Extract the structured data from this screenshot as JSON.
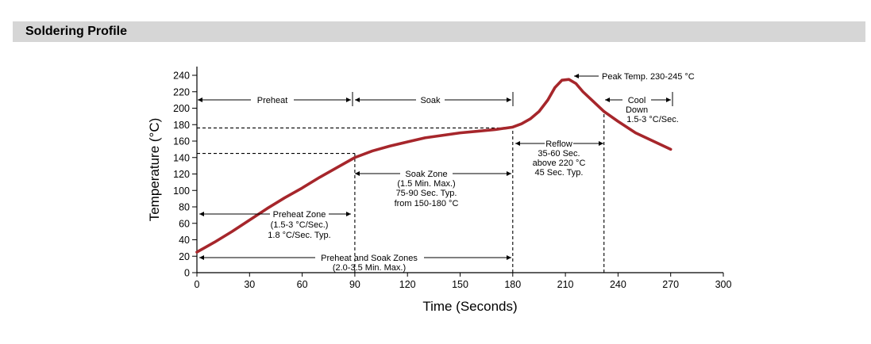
{
  "section": {
    "title": "Soldering Profile"
  },
  "chart_data": {
    "type": "line",
    "title": "",
    "xlabel": "Time (Seconds)",
    "ylabel": "Temperature (°C)",
    "xlim": [
      0,
      300
    ],
    "ylim": [
      0,
      240
    ],
    "xticks": [
      0,
      30,
      60,
      90,
      120,
      150,
      180,
      210,
      240,
      270,
      300
    ],
    "yticks": [
      0,
      20,
      40,
      60,
      80,
      100,
      120,
      140,
      160,
      180,
      200,
      220,
      240
    ],
    "grid": false,
    "series": [
      {
        "color": "#a6262b",
        "points": [
          [
            0,
            25
          ],
          [
            10,
            37
          ],
          [
            20,
            50
          ],
          [
            30,
            64
          ],
          [
            40,
            78
          ],
          [
            50,
            91
          ],
          [
            60,
            103
          ],
          [
            70,
            116
          ],
          [
            80,
            128
          ],
          [
            90,
            140
          ],
          [
            100,
            148
          ],
          [
            110,
            154
          ],
          [
            120,
            159
          ],
          [
            130,
            164
          ],
          [
            140,
            167
          ],
          [
            150,
            170
          ],
          [
            160,
            172
          ],
          [
            170,
            174
          ],
          [
            180,
            177
          ],
          [
            185,
            181
          ],
          [
            190,
            187
          ],
          [
            195,
            196
          ],
          [
            200,
            210
          ],
          [
            204,
            225
          ],
          [
            208,
            234
          ],
          [
            212,
            235
          ],
          [
            216,
            230
          ],
          [
            220,
            220
          ],
          [
            226,
            208
          ],
          [
            232,
            196
          ],
          [
            240,
            184
          ],
          [
            250,
            170
          ],
          [
            260,
            160
          ],
          [
            270,
            150
          ]
        ]
      }
    ],
    "reference_lines": [
      {
        "label": "preheat-end-temp",
        "x_from": 0,
        "x_to": 90,
        "y": 145
      },
      {
        "label": "soak-end-temp",
        "x_from": 0,
        "x_to": 180,
        "y": 176
      },
      {
        "label": "preheat-end-time",
        "x": 90,
        "y_from": 0,
        "y_to": 145
      },
      {
        "label": "soak-end-time",
        "x": 180,
        "y_from": 0,
        "y_to": 176
      },
      {
        "label": "reflow-end-time",
        "x": 232,
        "y_from": 0,
        "y_to": 195
      }
    ],
    "annotations": {
      "preheat": "Preheat",
      "soak": "Soak",
      "cool_lines": [
        "Cool",
        "Down",
        "1.5-3 °C/Sec."
      ],
      "peak": "Peak Temp. 230-245 °C",
      "reflow_lines": [
        "Reflow",
        "35-60 Sec.",
        "above 220 °C",
        "45 Sec. Typ."
      ],
      "soak_zone_lines": [
        "Soak Zone",
        "(1.5 Min. Max.)",
        "75-90 Sec. Typ.",
        "from 150-180 °C"
      ],
      "preheat_zone_lines": [
        "Preheat Zone",
        "(1.5-3 °C/Sec.)",
        "1.8 °C/Sec. Typ."
      ],
      "preheat_soak_lines": [
        "Preheat and Soak Zones",
        "(2.0-3.5 Min. Max.)"
      ]
    }
  }
}
